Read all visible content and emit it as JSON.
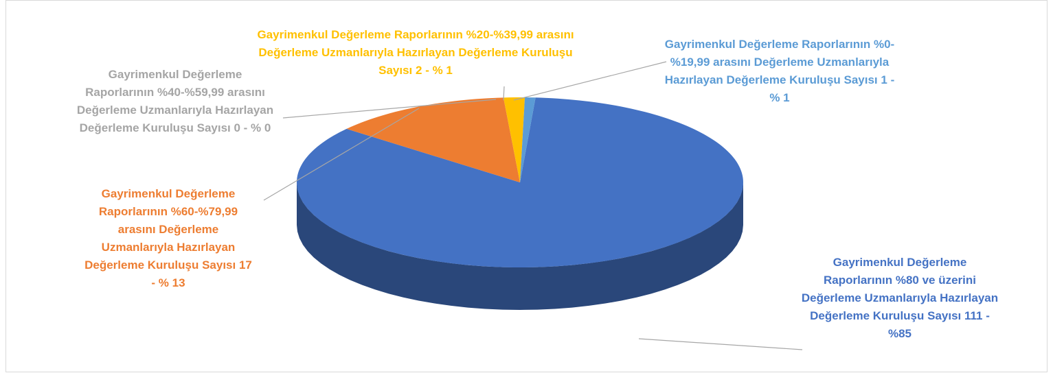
{
  "chart_data": {
    "type": "pie",
    "categories": [
      "Gayrimenkul Değerleme Raporlarının %80 ve üzerini Değerleme Uzmanlarıyla Hazırlayan Değerleme Kuruluşu Sayısı",
      "Gayrimenkul Değerleme Raporlarının %60-%79,99 arasını Değerleme Uzmanlarıyla Hazırlayan Değerleme Kuruluşu Sayısı",
      "Gayrimenkul Değerleme Raporlarının %40-%59,99 arasını Değerleme Uzmanlarıyla Hazırlayan Değerleme Kuruluşu Sayısı",
      "Gayrimenkul Değerleme Raporlarının %20-%39,99 arasını Değerleme Uzmanlarıyla Hazırlayan Değerleme Kuruluşu Sayısı",
      "Gayrimenkul Değerleme Raporlarının %0-%19,99 arasını Değerleme Uzmanlarıyla Hazırlayan Değerleme Kuruluşu Sayısı"
    ],
    "values": [
      111,
      17,
      0,
      2,
      1
    ],
    "value_labels": [
      "111 - %85",
      "17 - % 13",
      "0 - % 0",
      "2 - % 1",
      "1 - % 1"
    ],
    "colors": [
      "#4472c4",
      "#ed7d31",
      "#a5a5a5",
      "#ffc000",
      "#5b9bd5"
    ]
  }
}
